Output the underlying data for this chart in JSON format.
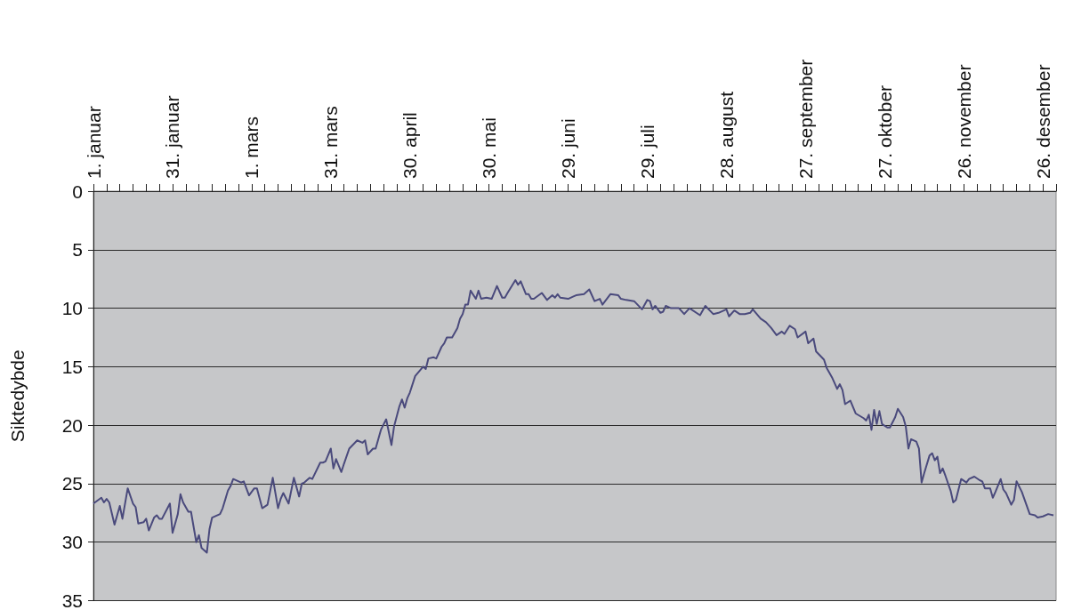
{
  "chart_data": {
    "type": "line",
    "ylabel": "Siktedybde",
    "color": "#4a4a7c",
    "grid": "y",
    "xlim": [
      "--01-01",
      "--12-31"
    ],
    "xticks": [
      {
        "value": "--01-01",
        "label": "1. januar"
      },
      {
        "value": "--01-06",
        "label": null
      },
      {
        "value": "--01-11",
        "label": null
      },
      {
        "value": "--01-16",
        "label": null
      },
      {
        "value": "--01-21",
        "label": null
      },
      {
        "value": "--01-26",
        "label": null
      },
      {
        "value": "--01-31",
        "label": "31. januar"
      },
      {
        "value": "--02-05",
        "label": null
      },
      {
        "value": "--02-10",
        "label": null
      },
      {
        "value": "--02-15",
        "label": null
      },
      {
        "value": "--02-20",
        "label": null
      },
      {
        "value": "--02-25",
        "label": null
      },
      {
        "value": "--03-01",
        "label": "1. mars"
      },
      {
        "value": "--03-06",
        "label": null
      },
      {
        "value": "--03-11",
        "label": null
      },
      {
        "value": "--03-16",
        "label": null
      },
      {
        "value": "--03-21",
        "label": null
      },
      {
        "value": "--03-26",
        "label": null
      },
      {
        "value": "--03-31",
        "label": "31. mars"
      },
      {
        "value": "--04-05",
        "label": null
      },
      {
        "value": "--04-10",
        "label": null
      },
      {
        "value": "--04-15",
        "label": null
      },
      {
        "value": "--04-20",
        "label": null
      },
      {
        "value": "--04-25",
        "label": null
      },
      {
        "value": "--04-30",
        "label": "30. april"
      },
      {
        "value": "--05-05",
        "label": null
      },
      {
        "value": "--05-10",
        "label": null
      },
      {
        "value": "--05-15",
        "label": null
      },
      {
        "value": "--05-20",
        "label": null
      },
      {
        "value": "--05-25",
        "label": null
      },
      {
        "value": "--05-30",
        "label": "30. mai"
      },
      {
        "value": "--06-04",
        "label": null
      },
      {
        "value": "--06-09",
        "label": null
      },
      {
        "value": "--06-14",
        "label": null
      },
      {
        "value": "--06-19",
        "label": null
      },
      {
        "value": "--06-24",
        "label": null
      },
      {
        "value": "--06-29",
        "label": "29. juni"
      },
      {
        "value": "--07-04",
        "label": null
      },
      {
        "value": "--07-09",
        "label": null
      },
      {
        "value": "--07-14",
        "label": null
      },
      {
        "value": "--07-19",
        "label": null
      },
      {
        "value": "--07-24",
        "label": null
      },
      {
        "value": "--07-29",
        "label": "29. juli"
      },
      {
        "value": "--08-03",
        "label": null
      },
      {
        "value": "--08-08",
        "label": null
      },
      {
        "value": "--08-13",
        "label": null
      },
      {
        "value": "--08-18",
        "label": null
      },
      {
        "value": "--08-23",
        "label": null
      },
      {
        "value": "--08-28",
        "label": "28. august"
      },
      {
        "value": "--09-02",
        "label": null
      },
      {
        "value": "--09-07",
        "label": null
      },
      {
        "value": "--09-12",
        "label": null
      },
      {
        "value": "--09-17",
        "label": null
      },
      {
        "value": "--09-22",
        "label": null
      },
      {
        "value": "--09-27",
        "label": "27. september"
      },
      {
        "value": "--10-02",
        "label": null
      },
      {
        "value": "--10-07",
        "label": null
      },
      {
        "value": "--10-12",
        "label": null
      },
      {
        "value": "--10-17",
        "label": null
      },
      {
        "value": "--10-22",
        "label": null
      },
      {
        "value": "--10-27",
        "label": "27. oktober"
      },
      {
        "value": "--11-01",
        "label": null
      },
      {
        "value": "--11-06",
        "label": null
      },
      {
        "value": "--11-11",
        "label": null
      },
      {
        "value": "--11-16",
        "label": null
      },
      {
        "value": "--11-21",
        "label": null
      },
      {
        "value": "--11-26",
        "label": "26. november"
      },
      {
        "value": "--12-01",
        "label": null
      },
      {
        "value": "--12-06",
        "label": null
      },
      {
        "value": "--12-11",
        "label": null
      },
      {
        "value": "--12-16",
        "label": null
      },
      {
        "value": "--12-21",
        "label": null
      },
      {
        "value": "--12-26",
        "label": "26. desember"
      },
      {
        "value": "--12-31",
        "label": null
      }
    ],
    "ylim": [
      35,
      0
    ],
    "yticks": [
      0,
      5,
      10,
      15,
      20,
      25,
      30,
      35
    ],
    "x": [
      "--01-01",
      "--01-04",
      "--01-05",
      "--01-06",
      "--01-07",
      "--01-09",
      "--01-11",
      "--01-12",
      "--01-14",
      "--01-16",
      "--01-17",
      "--01-18",
      "--01-20",
      "--01-21",
      "--01-22",
      "--01-24",
      "--01-25",
      "--01-26",
      "--01-27",
      "--01-30",
      "--01-31",
      "--02-02",
      "--02-03",
      "--02-04",
      "--02-06",
      "--02-07",
      "--02-09",
      "--02-10",
      "--02-11",
      "--02-13",
      "--02-14",
      "--02-15",
      "--02-18",
      "--02-19",
      "--02-21",
      "--02-22",
      "--02-23",
      "--02-26",
      "--02-27",
      "--02-29",
      "--03-02",
      "--03-03",
      "--03-05",
      "--03-07",
      "--03-09",
      "--03-11",
      "--03-12",
      "--03-13",
      "--03-15",
      "--03-17",
      "--03-19",
      "--03-20",
      "--03-21",
      "--03-23",
      "--03-24",
      "--03-27",
      "--03-28",
      "--03-29",
      "--03-31",
      "--04-01",
      "--04-02",
      "--04-04",
      "--04-05",
      "--04-07",
      "--04-10",
      "--04-12",
      "--04-13",
      "--04-14",
      "--04-16",
      "--04-17",
      "--04-19",
      "--04-21",
      "--04-23",
      "--04-24",
      "--04-26",
      "--04-27",
      "--04-28",
      "--04-29",
      "--04-30",
      "--05-02",
      "--05-05",
      "--05-06",
      "--05-07",
      "--05-09",
      "--05-10",
      "--05-12",
      "--05-13",
      "--05-14",
      "--05-16",
      "--05-18",
      "--05-19",
      "--05-20",
      "--05-21",
      "--05-22",
      "--05-23",
      "--05-25",
      "--05-26",
      "--05-27",
      "--05-29",
      "--05-31",
      "--06-02",
      "--06-04",
      "--06-05",
      "--06-06",
      "--06-09",
      "--06-10",
      "--06-11",
      "--06-13",
      "--06-14",
      "--06-15",
      "--06-16",
      "--06-19",
      "--06-21",
      "--06-23",
      "--06-24",
      "--06-25",
      "--06-26",
      "--06-29",
      "--07-01",
      "--07-02",
      "--07-05",
      "--07-07",
      "--07-09",
      "--07-11",
      "--07-12",
      "--07-15",
      "--07-18",
      "--07-19",
      "--07-21",
      "--07-24",
      "--07-27",
      "--07-29",
      "--07-30",
      "--07-31",
      "--08-01",
      "--08-03",
      "--08-04",
      "--08-05",
      "--08-07",
      "--08-10",
      "--08-12",
      "--08-14",
      "--08-18",
      "--08-20",
      "--08-23",
      "--08-25",
      "--08-28",
      "--08-29",
      "--08-31",
      "--09-02",
      "--09-04",
      "--09-06",
      "--09-07",
      "--09-10",
      "--09-12",
      "--09-14",
      "--09-16",
      "--09-18",
      "--09-19",
      "--09-21",
      "--09-23",
      "--09-24",
      "--09-27",
      "--09-28",
      "--09-30",
      "--10-01",
      "--10-04",
      "--10-05",
      "--10-07",
      "--10-09",
      "--10-10",
      "--10-11",
      "--10-12",
      "--10-14",
      "--10-16",
      "--10-19",
      "--10-20",
      "--10-21",
      "--10-22",
      "--10-23",
      "--10-24",
      "--10-25",
      "--10-26",
      "--10-28",
      "--10-29",
      "--10-31",
      "--11-01",
      "--11-03",
      "--11-04",
      "--11-05",
      "--11-06",
      "--11-08",
      "--11-09",
      "--11-10",
      "--11-11",
      "--11-13",
      "--11-14",
      "--11-15",
      "--11-16",
      "--11-17",
      "--11-18",
      "--11-19",
      "--11-21",
      "--11-22",
      "--11-23",
      "--11-25",
      "--11-27",
      "--11-28",
      "--11-30",
      "--12-02",
      "--12-03",
      "--12-04",
      "--12-06",
      "--12-07",
      "--12-08",
      "--12-10",
      "--12-11",
      "--12-12",
      "--12-14",
      "--12-15",
      "--12-16",
      "--12-18",
      "--12-21",
      "--12-23",
      "--12-24",
      "--12-26",
      "--12-28",
      "--12-30"
    ],
    "values": [
      26.7,
      26.2,
      26.6,
      26.3,
      26.6,
      28.5,
      26.9,
      28.0,
      25.4,
      26.7,
      27.0,
      28.4,
      28.3,
      28.0,
      29.0,
      27.9,
      27.7,
      28.0,
      28.0,
      26.7,
      29.2,
      27.6,
      25.9,
      26.6,
      27.4,
      27.4,
      30.0,
      29.4,
      30.5,
      30.9,
      28.9,
      27.9,
      27.6,
      27.1,
      25.6,
      25.2,
      24.6,
      24.9,
      24.8,
      26.0,
      25.4,
      25.4,
      27.1,
      26.8,
      24.5,
      27.1,
      26.3,
      25.8,
      26.7,
      24.5,
      26.1,
      25.0,
      24.9,
      24.5,
      24.6,
      23.2,
      23.2,
      23.1,
      22.0,
      23.7,
      22.9,
      24.0,
      23.3,
      22.0,
      21.3,
      21.5,
      21.3,
      22.5,
      22.0,
      22.0,
      20.4,
      19.5,
      21.7,
      20.1,
      18.4,
      17.8,
      18.5,
      17.7,
      17.2,
      15.8,
      15.0,
      15.2,
      14.3,
      14.2,
      14.3,
      13.3,
      13.0,
      12.5,
      12.5,
      11.7,
      10.9,
      10.5,
      9.7,
      9.7,
      8.5,
      9.2,
      8.5,
      9.2,
      9.1,
      9.2,
      8.1,
      9.1,
      9.1,
      8.7,
      7.6,
      8.0,
      7.7,
      8.8,
      8.8,
      9.2,
      9.2,
      8.7,
      9.3,
      8.9,
      9.1,
      8.8,
      9.1,
      9.2,
      9.0,
      8.9,
      8.8,
      8.4,
      9.4,
      9.2,
      9.7,
      8.8,
      8.9,
      9.2,
      9.3,
      9.4,
      10.1,
      9.3,
      9.4,
      10.1,
      9.8,
      10.4,
      10.3,
      9.8,
      10.0,
      10.0,
      10.5,
      10.0,
      10.6,
      9.8,
      10.5,
      10.4,
      10.1,
      10.7,
      10.2,
      10.5,
      10.5,
      10.4,
      10.1,
      10.9,
      11.2,
      11.7,
      12.3,
      12.0,
      12.2,
      11.5,
      11.8,
      12.5,
      12.0,
      13.0,
      12.6,
      13.7,
      14.4,
      15.1,
      15.9,
      16.9,
      16.5,
      17.0,
      18.2,
      17.9,
      19.0,
      19.4,
      19.6,
      19.1,
      20.4,
      18.7,
      19.9,
      18.8,
      19.9,
      20.2,
      20.2,
      19.3,
      18.6,
      19.3,
      20.1,
      22.0,
      21.2,
      21.4,
      22.0,
      24.9,
      24.1,
      22.6,
      22.4,
      23.0,
      22.7,
      24.1,
      23.7,
      24.3,
      25.6,
      26.6,
      26.4,
      24.6,
      24.9,
      24.6,
      24.4,
      24.7,
      24.8,
      25.4,
      25.4,
      26.2,
      25.7,
      24.6,
      25.5,
      25.8,
      26.8,
      26.4,
      24.8,
      25.7,
      27.6,
      27.7,
      27.9,
      27.8,
      27.6,
      27.7
    ]
  }
}
